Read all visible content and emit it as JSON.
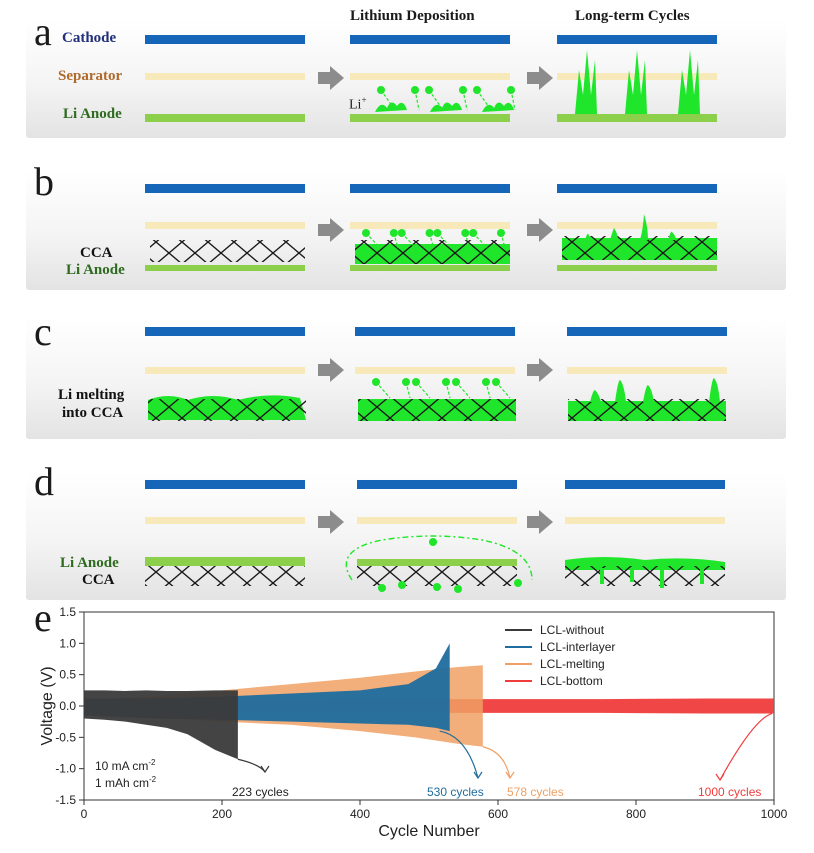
{
  "colors": {
    "cathode": "#1565b8",
    "separator": "#f7e9b9",
    "anode": "#8ccf4a",
    "li_deposit": "#1fe62a",
    "arrow": "#8c8c8c",
    "lcl_without": "#3a3a3a",
    "lcl_interlayer": "#1f6d9e",
    "lcl_melting": "#f0a064",
    "lcl_bottom": "#f03c3c"
  },
  "column_titles": [
    "Lithium Deposition",
    "Long-term Cycles"
  ],
  "panels": [
    {
      "letter": "a",
      "labels": [
        {
          "text": "Cathode",
          "color": "#1f2f7a"
        },
        {
          "text": "Separator",
          "color": "#b06a2c"
        },
        {
          "text": "Li Anode",
          "color": "#2e6b1f"
        }
      ],
      "ion_label": "Li",
      "ion_sup": "+"
    },
    {
      "letter": "b",
      "labels": [
        {
          "text": "CCA",
          "color": "#111111"
        },
        {
          "text": "Li Anode",
          "color": "#2e6b1f"
        }
      ]
    },
    {
      "letter": "c",
      "labels": [
        {
          "text": "Li melting",
          "color": "#111111"
        },
        {
          "text": "into CCA",
          "color": "#111111"
        }
      ]
    },
    {
      "letter": "d",
      "labels": [
        {
          "text": "Li Anode",
          "color": "#2e6b1f"
        },
        {
          "text": "CCA",
          "color": "#111111"
        }
      ]
    }
  ],
  "chart_data": {
    "panel_letter": "e",
    "type": "line",
    "xlabel": "Cycle Number",
    "ylabel": "Voltage (V)",
    "xlim": [
      0,
      1000
    ],
    "ylim": [
      -1.5,
      1.5
    ],
    "xticks": [
      0,
      200,
      400,
      600,
      800,
      1000
    ],
    "yticks": [
      -1.5,
      -1.0,
      -0.5,
      0.0,
      0.5,
      1.0,
      1.5
    ],
    "legend_position": "top-right",
    "conditions": [
      {
        "text": "10 mA cm",
        "sup": "-2"
      },
      {
        "text": "1 mAh cm",
        "sup": "-2"
      }
    ],
    "series": [
      {
        "name": "LCL-without",
        "end_cycle": 223,
        "end_label": "223 cycles",
        "upper_v": [
          0.25,
          0.25,
          0.24,
          0.25,
          0.24,
          0.24,
          0.25,
          0.25
        ],
        "lower_v": [
          -0.2,
          -0.22,
          -0.25,
          -0.3,
          -0.35,
          -0.45,
          -0.7,
          -0.85
        ],
        "upper_at": [
          0,
          30,
          60,
          90,
          120,
          150,
          190,
          223
        ],
        "lower_at": [
          0,
          30,
          60,
          90,
          120,
          150,
          190,
          223
        ]
      },
      {
        "name": "LCL-interlayer",
        "end_cycle": 530,
        "end_label": "530 cycles",
        "upper_v": [
          0.12,
          0.12,
          0.15,
          0.2,
          0.25,
          0.35,
          0.6,
          1.0
        ],
        "lower_v": [
          -0.15,
          -0.2,
          -0.22,
          -0.25,
          -0.28,
          -0.3,
          -0.35,
          -0.4
        ],
        "upper_at": [
          0,
          100,
          200,
          300,
          400,
          470,
          510,
          530
        ],
        "lower_at": [
          0,
          100,
          200,
          300,
          400,
          470,
          510,
          530
        ]
      },
      {
        "name": "LCL-melting",
        "end_cycle": 578,
        "end_label": "578 cycles",
        "upper_v": [
          0.1,
          0.15,
          0.25,
          0.35,
          0.45,
          0.55,
          0.62,
          0.65
        ],
        "lower_v": [
          -0.1,
          -0.18,
          -0.25,
          -0.3,
          -0.4,
          -0.5,
          -0.6,
          -0.65
        ],
        "upper_at": [
          0,
          100,
          200,
          300,
          400,
          480,
          540,
          578
        ],
        "lower_at": [
          0,
          100,
          200,
          300,
          400,
          480,
          540,
          578
        ]
      },
      {
        "name": "LCL-bottom",
        "end_cycle": 1000,
        "end_label": "1000 cycles",
        "upper_v": [
          0.1,
          0.1,
          0.1,
          0.11,
          0.11,
          0.11,
          0.12,
          0.12
        ],
        "lower_v": [
          -0.1,
          -0.1,
          -0.1,
          -0.11,
          -0.11,
          -0.11,
          -0.12,
          -0.12
        ],
        "upper_at": [
          0,
          150,
          300,
          450,
          600,
          750,
          900,
          1000
        ],
        "lower_at": [
          0,
          150,
          300,
          450,
          600,
          750,
          900,
          1000
        ]
      }
    ]
  }
}
